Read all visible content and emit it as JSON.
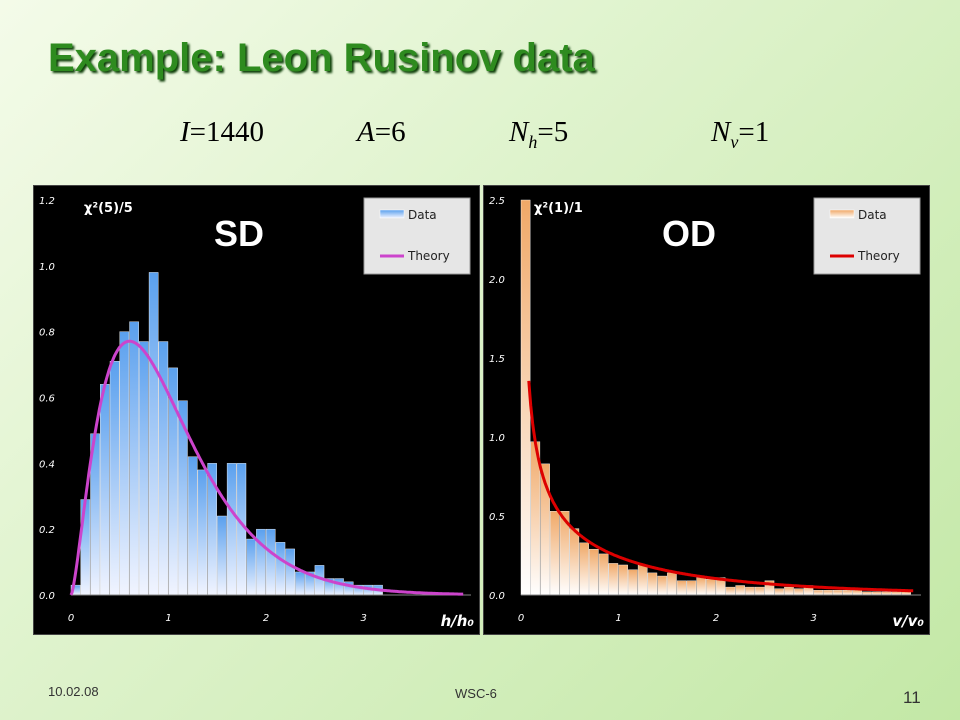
{
  "slide": {
    "title": "Example: Leon Rusinov data",
    "params": [
      {
        "symbol": "I",
        "sub": "",
        "value": "=1440"
      },
      {
        "symbol": "A",
        "sub": "",
        "value": "=6"
      },
      {
        "symbol": "N",
        "sub": "h",
        "value": "=5"
      },
      {
        "symbol": "N",
        "sub": "v",
        "value": "=1"
      }
    ],
    "footer": {
      "date": "10.02.08",
      "conference": "WSC-6",
      "page": "11"
    }
  },
  "colors": {
    "title": "#2e8b1f",
    "sd_bar_top": "#5aa0ee",
    "sd_bar_bottom": "#f1f4ff",
    "sd_theory": "#cc44cc",
    "od_bar_top": "#f0a867",
    "od_bar_bottom": "#ffffff",
    "od_theory": "#dd0000",
    "axis_text": "#ffffff"
  },
  "chart_data": [
    {
      "type": "bar",
      "panel_label": "SD",
      "formula": "χ²(5)/5",
      "xlabel": "h/h₀",
      "xticks": [
        "0",
        "1",
        "2",
        "3"
      ],
      "yticks": [
        "0.0",
        "0.2",
        "0.4",
        "0.6",
        "0.8",
        "1.0",
        "1.2"
      ],
      "xlim": [
        0,
        4.1
      ],
      "ylim": [
        0,
        1.2
      ],
      "bin_width": 0.1,
      "legend": {
        "position": "top-right",
        "data_label": "Data",
        "theory_label": "Theory"
      },
      "series": [
        {
          "name": "Data",
          "kind": "histogram",
          "x": [
            0.05,
            0.15,
            0.25,
            0.35,
            0.45,
            0.55,
            0.65,
            0.75,
            0.85,
            0.95,
            1.05,
            1.15,
            1.25,
            1.35,
            1.45,
            1.55,
            1.65,
            1.75,
            1.85,
            1.95,
            2.05,
            2.15,
            2.25,
            2.35,
            2.45,
            2.55,
            2.65,
            2.75,
            2.85,
            2.95,
            3.05,
            3.15,
            3.25,
            3.35,
            3.45,
            3.55,
            3.65,
            3.75,
            3.85,
            3.95
          ],
          "values": [
            0.03,
            0.29,
            0.49,
            0.64,
            0.71,
            0.8,
            0.83,
            0.77,
            0.98,
            0.77,
            0.69,
            0.59,
            0.42,
            0.38,
            0.4,
            0.24,
            0.4,
            0.4,
            0.17,
            0.2,
            0.2,
            0.16,
            0.14,
            0.07,
            0.07,
            0.09,
            0.05,
            0.05,
            0.04,
            0.03,
            0.03,
            0.03,
            0.0,
            0.0,
            0.0,
            0.0,
            0.0,
            0.0,
            0.0,
            0.0
          ]
        },
        {
          "name": "Theory",
          "kind": "curve",
          "dist": "chi2",
          "k": 5
        }
      ]
    },
    {
      "type": "bar",
      "panel_label": "OD",
      "formula": "χ²(1)/1",
      "xlabel": "v/v₀",
      "xticks": [
        "0",
        "1",
        "2",
        "3"
      ],
      "yticks": [
        "0.0",
        "0.5",
        "1.0",
        "1.5",
        "2.0",
        "2.5"
      ],
      "xlim": [
        0,
        4.1
      ],
      "ylim": [
        0,
        2.5
      ],
      "bin_width": 0.1,
      "legend": {
        "position": "top-right",
        "data_label": "Data",
        "theory_label": "Theory"
      },
      "series": [
        {
          "name": "Data",
          "kind": "histogram",
          "x": [
            0.05,
            0.15,
            0.25,
            0.35,
            0.45,
            0.55,
            0.65,
            0.75,
            0.85,
            0.95,
            1.05,
            1.15,
            1.25,
            1.35,
            1.45,
            1.55,
            1.65,
            1.75,
            1.85,
            1.95,
            2.05,
            2.15,
            2.25,
            2.35,
            2.45,
            2.55,
            2.65,
            2.75,
            2.85,
            2.95,
            3.05,
            3.15,
            3.25,
            3.35,
            3.45,
            3.55,
            3.65,
            3.75,
            3.85,
            3.95
          ],
          "values": [
            2.5,
            0.97,
            0.83,
            0.53,
            0.53,
            0.42,
            0.33,
            0.29,
            0.26,
            0.2,
            0.19,
            0.16,
            0.19,
            0.14,
            0.12,
            0.14,
            0.09,
            0.09,
            0.11,
            0.1,
            0.11,
            0.05,
            0.06,
            0.05,
            0.05,
            0.09,
            0.04,
            0.05,
            0.04,
            0.06,
            0.03,
            0.03,
            0.03,
            0.03,
            0.03,
            0.02,
            0.02,
            0.02,
            0.02,
            0.02
          ]
        },
        {
          "name": "Theory",
          "kind": "curve",
          "dist": "chi2",
          "k": 1
        }
      ]
    }
  ]
}
